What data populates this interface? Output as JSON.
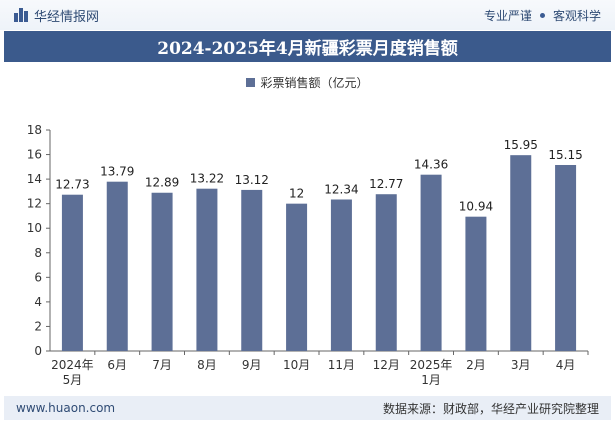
{
  "header": {
    "brand_name": "华经情报网",
    "tagline_left": "专业严谨",
    "tagline_right": "客观科学"
  },
  "title": "2024-2025年4月新疆彩票月度销售额",
  "footer": {
    "url": "www.huaon.com",
    "source": "数据来源：财政部，华经产业研究院整理"
  },
  "colors": {
    "bar": "#5d6f96",
    "title_bg": "#3b5a8c"
  },
  "chart_data": {
    "type": "bar",
    "categories": [
      "2024年\n5月",
      "6月",
      "7月",
      "8月",
      "9月",
      "10月",
      "11月",
      "12月",
      "2025年\n1月",
      "2月",
      "3月",
      "4月"
    ],
    "series": [
      {
        "name": "彩票销售额（亿元）",
        "values": [
          12.73,
          13.79,
          12.89,
          13.22,
          13.12,
          12,
          12.34,
          12.77,
          14.36,
          10.94,
          15.95,
          15.15
        ],
        "labels": [
          "12.73",
          "13.79",
          "12.89",
          "13.22",
          "13.12",
          "12",
          "12.34",
          "12.77",
          "14.36",
          "10.94",
          "15.95",
          "15.15"
        ]
      }
    ],
    "ylim": [
      0,
      18
    ],
    "yticks": [
      0,
      2,
      4,
      6,
      8,
      10,
      12,
      14,
      16,
      18
    ],
    "grid": false,
    "legend_position": "top-center"
  }
}
